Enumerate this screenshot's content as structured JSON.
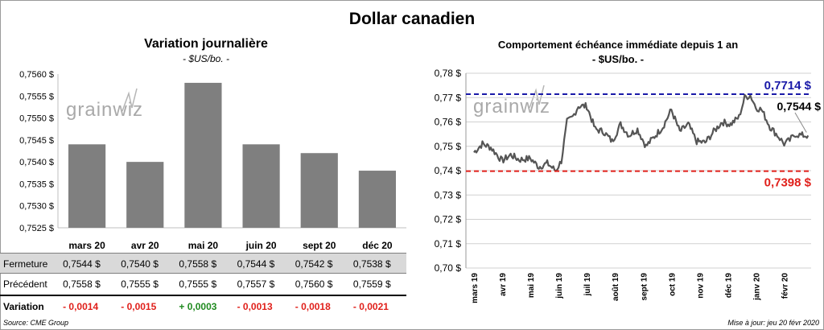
{
  "title": "Dollar canadien",
  "watermark": "grainwiz",
  "left_chart": {
    "title": "Variation  journalière",
    "subtitle": "- $US/bo. -",
    "chart_data": {
      "type": "bar",
      "categories": [
        "mars 20",
        "avr 20",
        "mai 20",
        "juin 20",
        "sept 20",
        "déc 20"
      ],
      "values": [
        0.7544,
        0.754,
        0.7558,
        0.7544,
        0.7542,
        0.7538
      ],
      "ylim": [
        0.7525,
        0.756
      ],
      "yticks": [
        "0,7525 $",
        "0,7530 $",
        "0,7535 $",
        "0,7540 $",
        "0,7545 $",
        "0,7550 $",
        "0,7555 $",
        "0,7560 $"
      ],
      "bar_color": "#7f7f7f"
    }
  },
  "table": {
    "rows": [
      {
        "label": "Fermeture",
        "cells": [
          "0,7544  $",
          "0,7540  $",
          "0,7558  $",
          "0,7544  $",
          "0,7542  $",
          "0,7538  $"
        ]
      },
      {
        "label": "Précédent",
        "cells": [
          "0,7558  $",
          "0,7555  $",
          "0,7555  $",
          "0,7557  $",
          "0,7560  $",
          "0,7559  $"
        ]
      },
      {
        "label": "Variation",
        "cells": [
          "- 0,0014",
          "- 0,0015",
          "+ 0,0003",
          "- 0,0013",
          "- 0,0018",
          "- 0,0021"
        ],
        "signs": [
          "neg",
          "neg",
          "pos",
          "neg",
          "neg",
          "neg"
        ]
      }
    ]
  },
  "right_chart": {
    "title": "Comportement échéance immédiate depuis 1 an",
    "subtitle": "- $US/bo. -",
    "chart_data": {
      "type": "line",
      "ylim": [
        0.7,
        0.78
      ],
      "yticks": [
        "0,70 $",
        "0,71 $",
        "0,72 $",
        "0,73 $",
        "0,74 $",
        "0,75 $",
        "0,76 $",
        "0,77 $",
        "0,78 $"
      ],
      "xticks": [
        "mars 19",
        "avr 19",
        "mai 19",
        "juin 19",
        "juil 19",
        "août 19",
        "sept 19",
        "oct 19",
        "nov 19",
        "déc 19",
        "janv 20",
        "févr 20"
      ],
      "line_color": "#555555",
      "x_months": [
        0,
        0.3,
        0.6,
        1.0,
        1.3,
        1.6,
        2.0,
        2.3,
        2.6,
        2.9,
        3.1,
        3.3,
        3.5,
        3.7,
        4.0,
        4.3,
        4.6,
        4.9,
        5.2,
        5.5,
        5.8,
        6.1,
        6.4,
        6.7,
        7.0,
        7.3,
        7.6,
        7.9,
        8.2,
        8.5,
        8.8,
        9.1,
        9.4,
        9.6,
        9.8,
        10.0,
        10.2,
        10.5,
        10.8,
        11.0,
        11.2,
        11.4,
        11.6,
        11.85
      ],
      "y_values": [
        0.7475,
        0.751,
        0.7495,
        0.744,
        0.7465,
        0.7445,
        0.745,
        0.7415,
        0.743,
        0.74,
        0.744,
        0.76,
        0.762,
        0.7665,
        0.7665,
        0.757,
        0.756,
        0.752,
        0.759,
        0.7545,
        0.757,
        0.75,
        0.754,
        0.758,
        0.765,
        0.756,
        0.759,
        0.752,
        0.7515,
        0.756,
        0.76,
        0.759,
        0.762,
        0.77,
        0.771,
        0.766,
        0.765,
        0.758,
        0.754,
        0.751,
        0.7525,
        0.755,
        0.7545,
        0.7544
      ],
      "high": {
        "value": 0.7714,
        "label": "0,7714  $",
        "color": "#1a1aa8"
      },
      "low": {
        "value": 0.7398,
        "label": "0,7398  $",
        "color": "#e0201b"
      },
      "last": {
        "value": 0.7544,
        "label": "0,7544 $"
      }
    }
  },
  "footer": {
    "source": "Source: CME Group",
    "updated": "Mise à jour: jeu 20 févr 2020"
  }
}
